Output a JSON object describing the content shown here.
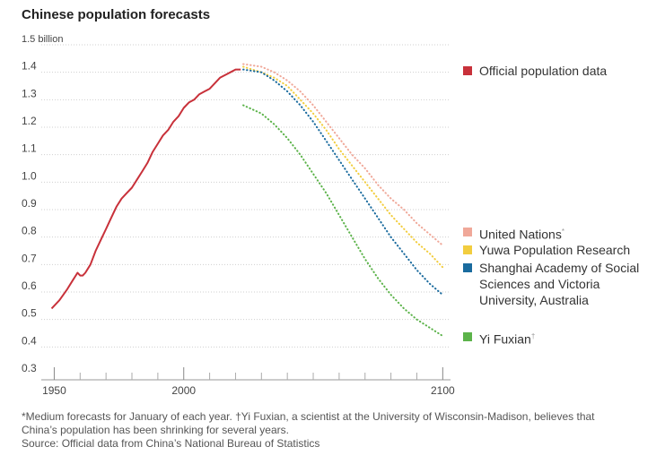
{
  "chart_data": {
    "type": "line",
    "title": "Chinese population forecasts",
    "y_unit_label": "1.5 billion",
    "ylim": [
      0.3,
      1.5
    ],
    "xlim": [
      1945,
      2103
    ],
    "y_ticks": [
      {
        "value": 1.5,
        "label": "1.5 billion"
      },
      {
        "value": 1.4,
        "label": "1.4"
      },
      {
        "value": 1.3,
        "label": "1.3"
      },
      {
        "value": 1.2,
        "label": "1.2"
      },
      {
        "value": 1.1,
        "label": "1.1"
      },
      {
        "value": 1.0,
        "label": "1.0"
      },
      {
        "value": 0.9,
        "label": "0.9"
      },
      {
        "value": 0.8,
        "label": "0.8"
      },
      {
        "value": 0.7,
        "label": "0.7"
      },
      {
        "value": 0.6,
        "label": "0.6"
      },
      {
        "value": 0.5,
        "label": "0.5"
      },
      {
        "value": 0.4,
        "label": "0.4"
      },
      {
        "value": 0.3,
        "label": "0.3"
      }
    ],
    "x_ticks": [
      {
        "value": 1950,
        "label": "1950"
      },
      {
        "value": 2000,
        "label": "2000"
      },
      {
        "value": 2100,
        "label": "2100"
      }
    ],
    "x_minor_ticks": [
      1960,
      1970,
      1980,
      1990,
      2010,
      2020,
      2030,
      2040,
      2050,
      2060,
      2070,
      2080,
      2090
    ],
    "series": [
      {
        "name": "Official population data",
        "color": "#c8313a",
        "style": "solid",
        "x": [
          1949,
          1952,
          1955,
          1957,
          1959,
          1960,
          1961,
          1962,
          1964,
          1966,
          1968,
          1970,
          1972,
          1974,
          1976,
          1978,
          1980,
          1982,
          1984,
          1986,
          1988,
          1990,
          1992,
          1994,
          1996,
          1998,
          2000,
          2002,
          2004,
          2006,
          2008,
          2010,
          2012,
          2014,
          2016,
          2018,
          2020,
          2022
        ],
        "values": [
          0.54,
          0.57,
          0.61,
          0.64,
          0.67,
          0.66,
          0.66,
          0.67,
          0.7,
          0.75,
          0.79,
          0.83,
          0.87,
          0.91,
          0.94,
          0.96,
          0.98,
          1.01,
          1.04,
          1.07,
          1.11,
          1.14,
          1.17,
          1.19,
          1.22,
          1.24,
          1.27,
          1.29,
          1.3,
          1.32,
          1.33,
          1.34,
          1.36,
          1.38,
          1.39,
          1.4,
          1.41,
          1.41
        ]
      },
      {
        "name": "United Nations",
        "name_marker": "*",
        "color": "#f0a899",
        "style": "dotted",
        "x": [
          2023,
          2030,
          2035,
          2040,
          2045,
          2050,
          2055,
          2060,
          2065,
          2070,
          2075,
          2080,
          2085,
          2090,
          2095,
          2100
        ],
        "values": [
          1.43,
          1.42,
          1.4,
          1.37,
          1.33,
          1.28,
          1.22,
          1.16,
          1.1,
          1.05,
          0.99,
          0.94,
          0.9,
          0.85,
          0.81,
          0.77
        ]
      },
      {
        "name": "Yuwa Population Research",
        "color": "#f2cd3f",
        "style": "dotted",
        "x": [
          2023,
          2030,
          2035,
          2040,
          2045,
          2050,
          2055,
          2060,
          2065,
          2070,
          2075,
          2080,
          2085,
          2090,
          2095,
          2100
        ],
        "values": [
          1.42,
          1.4,
          1.38,
          1.35,
          1.3,
          1.25,
          1.19,
          1.12,
          1.06,
          1.0,
          0.94,
          0.88,
          0.83,
          0.78,
          0.74,
          0.69
        ]
      },
      {
        "name": "Shanghai Academy of Social Sciences and Victoria University, Australia",
        "color": "#1a6b9e",
        "style": "dotted",
        "x": [
          2023,
          2030,
          2035,
          2040,
          2045,
          2050,
          2055,
          2060,
          2065,
          2070,
          2075,
          2080,
          2085,
          2090,
          2095,
          2100
        ],
        "values": [
          1.41,
          1.4,
          1.37,
          1.33,
          1.28,
          1.22,
          1.15,
          1.08,
          1.01,
          0.94,
          0.87,
          0.8,
          0.74,
          0.68,
          0.63,
          0.59
        ]
      },
      {
        "name": "Yi Fuxian",
        "name_marker": "†",
        "color": "#5cb34a",
        "style": "dotted",
        "x": [
          2023,
          2030,
          2035,
          2040,
          2045,
          2050,
          2055,
          2060,
          2065,
          2070,
          2075,
          2080,
          2085,
          2090,
          2095,
          2100
        ],
        "values": [
          1.28,
          1.25,
          1.21,
          1.16,
          1.1,
          1.03,
          0.96,
          0.88,
          0.8,
          0.72,
          0.65,
          0.59,
          0.54,
          0.5,
          0.47,
          0.44
        ]
      }
    ]
  },
  "footnote": {
    "line1": "*Medium forecasts for January of each year. †Yi Fuxian, a scientist at the University of Wisconsin-Madison, believes that",
    "line2": "China’s population has been shrinking for several years.",
    "source": "Source: Official data from China’s National Bureau of Statistics"
  }
}
